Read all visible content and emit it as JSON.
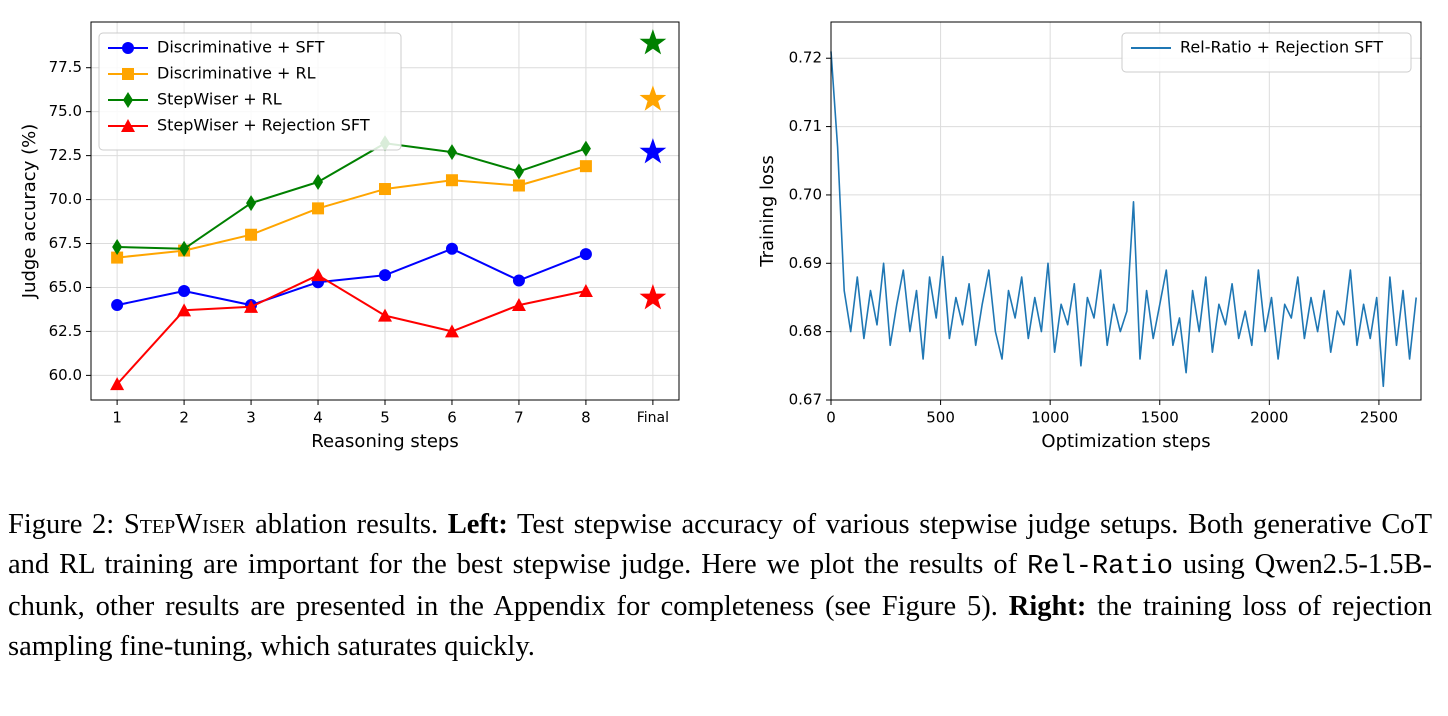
{
  "chart_data": [
    {
      "type": "line",
      "xlabel": "Reasoning steps",
      "ylabel": "Judge accuracy (%)",
      "categories": [
        "1",
        "2",
        "3",
        "4",
        "5",
        "6",
        "7",
        "8",
        "Final"
      ],
      "series": [
        {
          "name": "Discriminative + SFT",
          "color": "#0000ff",
          "marker": "circle",
          "values": [
            64.0,
            64.8,
            64.0,
            65.3,
            65.7,
            67.2,
            65.4,
            66.9,
            null
          ],
          "final": 72.7
        },
        {
          "name": "Discriminative + RL",
          "color": "#ffa500",
          "marker": "square",
          "values": [
            66.7,
            67.1,
            68.0,
            69.5,
            70.6,
            71.1,
            70.8,
            71.9,
            null
          ],
          "final": 75.7
        },
        {
          "name": "StepWiser + RL",
          "color": "#008000",
          "marker": "diamond",
          "values": [
            67.3,
            67.2,
            69.8,
            71.0,
            73.2,
            72.7,
            71.6,
            72.9,
            null
          ],
          "final": 78.9
        },
        {
          "name": "StepWiser + Rejection SFT",
          "color": "#ff0000",
          "marker": "triangle",
          "values": [
            59.5,
            63.7,
            63.9,
            65.7,
            63.4,
            62.5,
            64.0,
            64.8,
            null
          ],
          "final": 64.4
        }
      ],
      "ylim": [
        58.6,
        80.1
      ],
      "yticks": [
        {
          "value": 60,
          "label": "60.0"
        },
        62.5,
        {
          "value": 65,
          "label": "65.0"
        },
        67.5,
        {
          "value": 70,
          "label": "70.0"
        },
        72.5,
        {
          "value": 75,
          "label": "75.0"
        },
        77.5
      ],
      "grid": true,
      "legend": "upper left"
    },
    {
      "type": "line",
      "xlabel": "Optimization steps",
      "ylabel": "Training loss",
      "x": [
        0,
        30,
        60,
        90,
        120,
        150,
        180,
        210,
        240,
        270,
        300,
        330,
        360,
        390,
        420,
        450,
        480,
        510,
        540,
        570,
        600,
        630,
        660,
        690,
        720,
        750,
        780,
        810,
        840,
        870,
        900,
        930,
        960,
        990,
        1020,
        1050,
        1080,
        1110,
        1140,
        1170,
        1200,
        1230,
        1260,
        1290,
        1320,
        1350,
        1380,
        1410,
        1440,
        1470,
        1500,
        1530,
        1560,
        1590,
        1620,
        1650,
        1680,
        1710,
        1740,
        1770,
        1800,
        1830,
        1860,
        1890,
        1920,
        1950,
        1980,
        2010,
        2040,
        2070,
        2100,
        2130,
        2160,
        2190,
        2220,
        2250,
        2280,
        2310,
        2340,
        2370,
        2400,
        2430,
        2460,
        2490,
        2520,
        2550,
        2580,
        2610,
        2640,
        2670
      ],
      "series": [
        {
          "name": "Rel-Ratio + Rejection SFT",
          "color": "#1f77b4",
          "values": [
            0.721,
            0.707,
            0.686,
            0.68,
            0.688,
            0.679,
            0.686,
            0.681,
            0.69,
            0.678,
            0.684,
            0.689,
            0.68,
            0.686,
            0.676,
            0.688,
            0.682,
            0.691,
            0.679,
            0.685,
            0.681,
            0.687,
            0.678,
            0.684,
            0.689,
            0.68,
            0.676,
            0.686,
            0.682,
            0.688,
            0.679,
            0.685,
            0.68,
            0.69,
            0.677,
            0.684,
            0.681,
            0.687,
            0.675,
            0.685,
            0.682,
            0.689,
            0.678,
            0.684,
            0.68,
            0.683,
            0.699,
            0.676,
            0.686,
            0.679,
            0.684,
            0.689,
            0.678,
            0.682,
            0.674,
            0.686,
            0.68,
            0.688,
            0.677,
            0.684,
            0.681,
            0.687,
            0.679,
            0.683,
            0.678,
            0.689,
            0.68,
            0.685,
            0.676,
            0.684,
            0.682,
            0.688,
            0.679,
            0.685,
            0.68,
            0.686,
            0.677,
            0.683,
            0.681,
            0.689,
            0.678,
            0.684,
            0.679,
            0.685,
            0.672,
            0.688,
            0.678,
            0.686,
            0.676,
            0.685
          ]
        }
      ],
      "xlim": [
        0,
        2692
      ],
      "xticks": [
        0,
        500,
        1000,
        1500,
        2000,
        2500
      ],
      "ylim": [
        0.67,
        0.7253
      ],
      "yticks": [
        0.67,
        0.68,
        0.69,
        {
          "value": 0.7,
          "label": "0.70"
        },
        0.71,
        0.72
      ],
      "grid": true,
      "legend": "upper right"
    }
  ],
  "caption": {
    "label": "Figure 2:",
    "name": "StepWiser",
    "text1": " ablation results. ",
    "left_label": "Left:",
    "text2": " Test stepwise accuracy of various stepwise judge setups. Both generative CoT and RL training are important for the best stepwise judge. Here we plot the results of ",
    "code": "Rel-Ratio",
    "text3": " using Qwen2.5-1.5B-chunk, other results are presented in the Appendix for completeness (see Figure 5). ",
    "right_label": "Right:",
    "text4": " the training loss of rejection sampling fine-tuning, which saturates quickly."
  }
}
